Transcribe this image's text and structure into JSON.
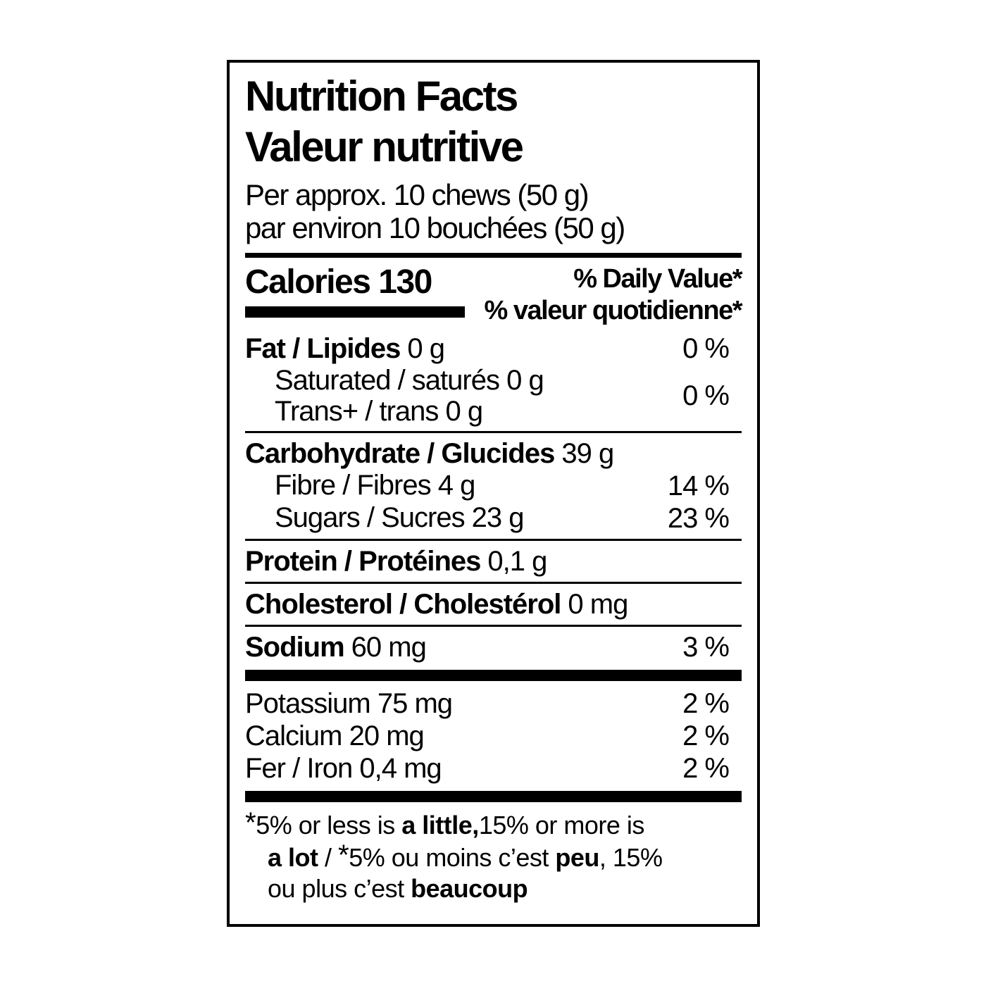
{
  "label": {
    "title_en": "Nutrition Facts",
    "title_fr": "Valeur nutritive",
    "serving_en": "Per approx. 10 chews (50 g)",
    "serving_fr": "par environ 10 bouchées (50 g)",
    "calories": "Calories 130",
    "dv_header_en": "% Daily Value*",
    "dv_header_fr": "% valeur quotidienne*",
    "rows": {
      "fat": {
        "name": "Fat / Lipides",
        "amount": "0 g",
        "dv": "0 %"
      },
      "saturated": {
        "name": "Saturated / saturés 0 g"
      },
      "trans": {
        "name": "Trans+ / trans 0 g"
      },
      "sat_trans_dv": "0 %",
      "carbohydrate": {
        "name": "Carbohydrate / Glucides",
        "amount": "39 g"
      },
      "fibre": {
        "name": "Fibre / Fibres 4 g",
        "dv": "14 %"
      },
      "sugars": {
        "name": "Sugars / Sucres 23 g",
        "dv": "23 %"
      },
      "protein": {
        "name": "Protein / Protéines",
        "amount": "0,1 g"
      },
      "cholesterol": {
        "name": "Cholesterol / Cholestérol",
        "amount": "0 mg"
      },
      "sodium": {
        "name": "Sodium",
        "amount": "60 mg",
        "dv": "3 %"
      },
      "potassium": {
        "name": "Potassium 75 mg",
        "dv": "2 %"
      },
      "calcium": {
        "name": "Calcium 20 mg",
        "dv": "2 %"
      },
      "iron": {
        "name": "Fer / Iron 0,4 mg",
        "dv": "2 %"
      }
    },
    "footnote": {
      "l1_ast": "*",
      "l1_a": "5% or less is ",
      "l1_b": "a little,",
      "l1_c": "15% or more is",
      "l2_a": "a lot",
      "l2_b": " / ",
      "l2_ast": "*",
      "l2_c": "5% ou moins c’est ",
      "l2_d": "peu",
      "l2_e": ", 15%",
      "l3_a": "ou plus c’est ",
      "l3_b": "beaucoup"
    },
    "colors": {
      "text": "#000000",
      "background": "#ffffff"
    }
  }
}
